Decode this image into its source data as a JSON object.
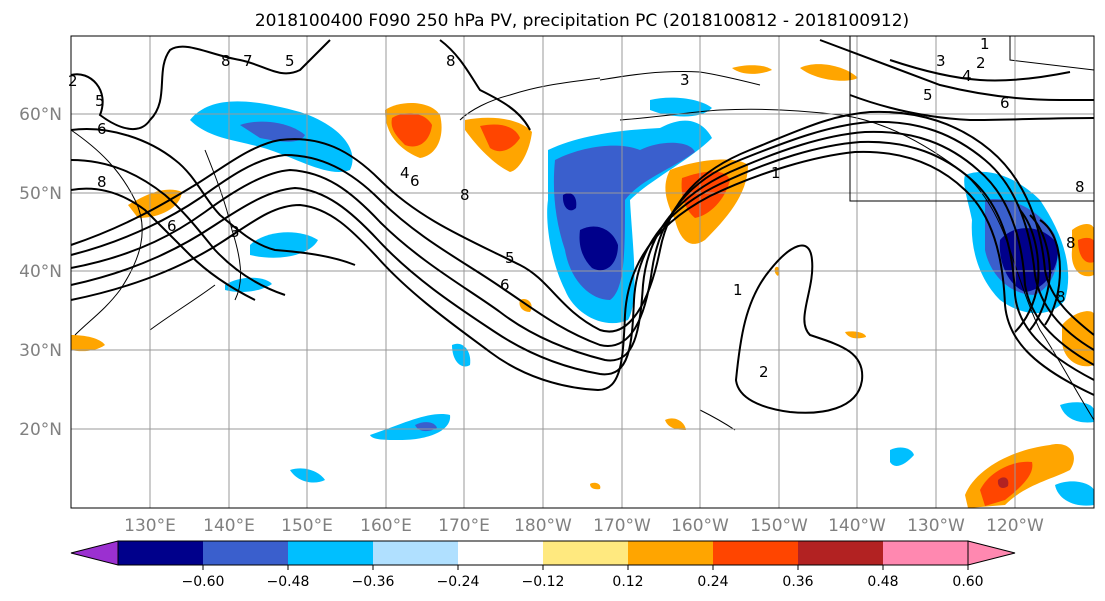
{
  "title": "2018100400 F090 250 hPa PV, precipitation PC (2018100812 - 2018100912)",
  "lat_labels": [
    "60°N",
    "50°N",
    "40°N",
    "30°N",
    "20°N"
  ],
  "lon_labels": [
    "130°E",
    "140°E",
    "150°E",
    "160°E",
    "170°E",
    "180°W",
    "170°W",
    "160°W",
    "150°W",
    "140°W",
    "130°W",
    "120°W"
  ],
  "colorbar": {
    "colors": [
      "#9b30d0",
      "#00008b",
      "#3a5fcd",
      "#00bfff",
      "#b0e0ff",
      "#ffffff",
      "#ffe97f",
      "#ffa500",
      "#ff4500",
      "#b22222",
      "#ff88b0"
    ],
    "tick_labels": [
      "−0.60",
      "−0.48",
      "−0.36",
      "−0.24",
      "−0.12",
      "0.12",
      "0.24",
      "0.36",
      "0.48",
      "0.60"
    ]
  },
  "contour_labels": [
    "5",
    "6",
    "8",
    "6",
    "8",
    "7",
    "5",
    "8",
    "6",
    "8",
    "3",
    "4",
    "5",
    "6",
    "1",
    "2",
    "3",
    "4",
    "5",
    "6",
    "8",
    "1",
    "1",
    "2",
    "2",
    "8",
    "3",
    "8"
  ]
}
